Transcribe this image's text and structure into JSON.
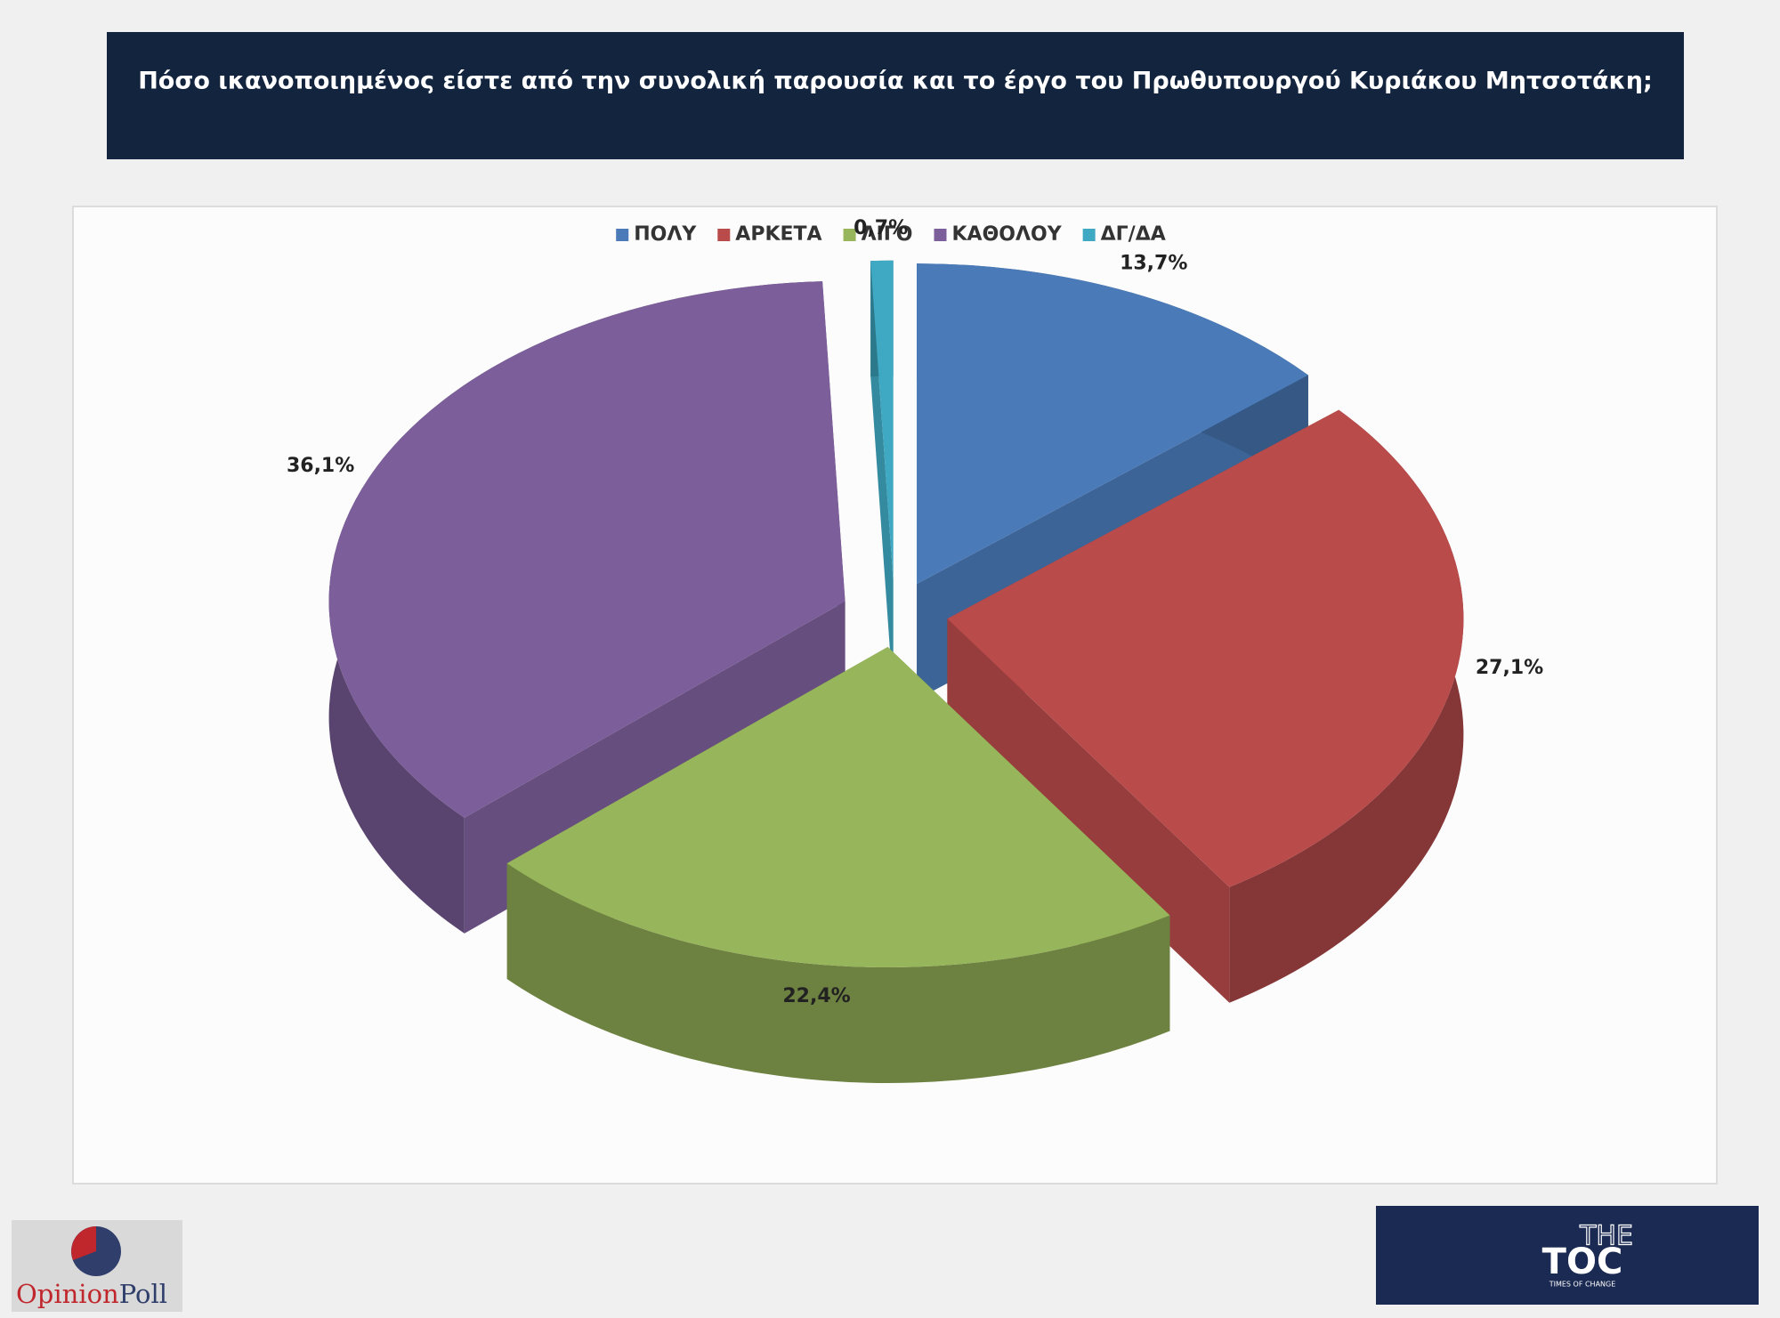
{
  "chart_data": {
    "type": "pie3d",
    "title": "Πόσο ικανοποιημένος είστε από την συνολική παρουσία και το έργο του Πρωθυπουργού Κυριάκου Μητσοτάκη;",
    "categories": [
      "ΠΟΛΥ",
      "ΑΡΚΕΤΑ",
      "ΛΙΓΟ",
      "ΚΑΘΟΛΟΥ",
      "ΔΓ/ΔΑ"
    ],
    "values": [
      13.7,
      27.1,
      22.4,
      36.1,
      0.7
    ],
    "value_labels": [
      "13,7%",
      "27,1%",
      "22,4%",
      "36,1%",
      "0,7%"
    ],
    "colors": [
      "#4a7ab8",
      "#b94b4b",
      "#97b55a",
      "#7c5f9a",
      "#3fa8c2"
    ],
    "legend": "top"
  },
  "logos": {
    "left": [
      "Opinion",
      "Poll"
    ],
    "right": [
      "THE",
      "TOC",
      "TIMES OF CHANGE"
    ]
  }
}
